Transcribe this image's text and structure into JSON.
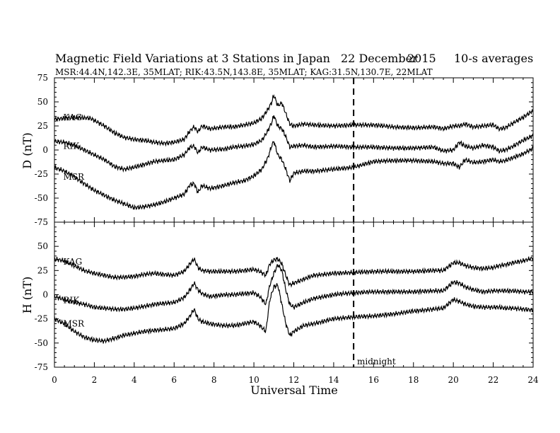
{
  "chart_data": {
    "type": "line",
    "title_left": "Magnetic Field Variations at 3 Stations in Japan",
    "title_date": "22 December",
    "title_year": "2015",
    "title_avg": "10-s averages",
    "subtitle": "MSR:44.4N,142.3E, 35MLAT;   RIK:43.5N,143.8E, 35MLAT;   KAG:31.5N,130.7E, 22MLAT",
    "xlabel": "Universal Time",
    "xlim": [
      0,
      24
    ],
    "xticks": [
      "0",
      "2",
      "4",
      "6",
      "8",
      "10",
      "12",
      "14",
      "16",
      "18",
      "20",
      "22",
      "24"
    ],
    "annotation": {
      "x": 15,
      "label": "midnight"
    },
    "panels": [
      {
        "ylabel": "D (nT)",
        "ylim": [
          -75,
          75
        ],
        "yticks": [
          "75",
          "50",
          "25",
          "0",
          "-25",
          "-50",
          "-75"
        ],
        "series": [
          {
            "name": "KAG",
            "label_at": [
              0.3,
              34
            ],
            "x": [
              0,
              1,
              1.8,
              2.5,
              3,
              3.5,
              4,
              4.5,
              5,
              5.5,
              6,
              6.5,
              6.8,
              7,
              7.2,
              7.4,
              7.8,
              8.5,
              9,
              9.5,
              10,
              10.4,
              10.7,
              10.9,
              11.0,
              11.2,
              11.4,
              11.6,
              11.8,
              12,
              12.5,
              13,
              14,
              15,
              16,
              17,
              18,
              19,
              19.5,
              20,
              20.3,
              20.6,
              21,
              21.5,
              22,
              22.3,
              22.6,
              23,
              23.5,
              24
            ],
            "values": [
              32,
              34,
              33,
              25,
              18,
              13,
              11,
              10,
              8,
              7,
              8,
              11,
              20,
              24,
              19,
              25,
              22,
              24,
              24,
              26,
              28,
              33,
              42,
              50,
              57,
              46,
              49,
              38,
              27,
              25,
              27,
              26,
              25,
              26,
              26,
              24,
              23,
              24,
              22,
              25,
              25,
              27,
              24,
              25,
              26,
              22,
              23,
              28,
              34,
              41
            ]
          },
          {
            "name": "RIK",
            "label_at": [
              0.3,
              4
            ],
            "x": [
              0,
              0.5,
              1,
              2,
              2.5,
              3,
              3.5,
              4,
              4.5,
              5,
              6,
              6.5,
              6.8,
              7,
              7.2,
              7.4,
              7.8,
              8.5,
              9,
              9.5,
              10,
              10.4,
              10.7,
              10.9,
              11.0,
              11.2,
              11.4,
              11.6,
              11.8,
              12,
              12.5,
              13,
              14,
              15,
              16,
              17,
              18,
              19,
              19.5,
              20,
              20.3,
              20.6,
              21,
              21.5,
              22,
              22.3,
              22.6,
              23,
              23.5,
              24
            ],
            "values": [
              9,
              8,
              5,
              -5,
              -10,
              -17,
              -20,
              -18,
              -15,
              -12,
              -10,
              -5,
              3,
              4,
              -3,
              3,
              0,
              1,
              3,
              4,
              6,
              10,
              20,
              29,
              36,
              25,
              22,
              14,
              3,
              4,
              5,
              3,
              4,
              3,
              3,
              2,
              2,
              3,
              -1,
              0,
              8,
              4,
              2,
              5,
              3,
              -1,
              0,
              4,
              10,
              15
            ]
          },
          {
            "name": "MSR",
            "label_at": [
              0.3,
              -28
            ],
            "x": [
              0,
              0.5,
              1,
              1.5,
              2,
              2.5,
              3,
              3.5,
              4,
              4.5,
              5,
              5.5,
              6,
              6.5,
              6.8,
              7,
              7.2,
              7.4,
              7.8,
              8.5,
              9,
              9.5,
              10,
              10.4,
              10.7,
              10.9,
              11.0,
              11.2,
              11.4,
              11.6,
              11.8,
              12,
              12.5,
              13,
              14,
              15,
              16,
              17,
              18,
              19,
              19.5,
              20,
              20.3,
              20.6,
              21,
              21.5,
              22,
              22.3,
              22.6,
              23,
              23.5,
              24
            ],
            "values": [
              -18,
              -22,
              -28,
              -35,
              -42,
              -47,
              -52,
              -56,
              -60,
              -59,
              -57,
              -54,
              -50,
              -46,
              -36,
              -35,
              -44,
              -37,
              -40,
              -37,
              -34,
              -32,
              -27,
              -20,
              -8,
              5,
              9,
              -5,
              -10,
              -20,
              -32,
              -24,
              -22,
              -22,
              -20,
              -18,
              -12,
              -11,
              -11,
              -12,
              -14,
              -14,
              -18,
              -10,
              -13,
              -12,
              -10,
              -12,
              -11,
              -8,
              -4,
              2
            ]
          }
        ]
      },
      {
        "ylabel": "H (nT)",
        "ylim": [
          -75,
          75
        ],
        "yticks": [
          "50",
          "25",
          "0",
          "-25",
          "-50",
          "-75"
        ],
        "series": [
          {
            "name": "KAG",
            "label_at": [
              0.3,
              34
            ],
            "x": [
              0,
              0.5,
              1,
              1.5,
              2,
              2.5,
              3,
              3.5,
              4,
              4.5,
              5,
              6,
              6.5,
              6.8,
              7,
              7.2,
              7.4,
              7.8,
              8.5,
              9,
              10,
              10.3,
              10.6,
              10.8,
              11.0,
              11.2,
              11.4,
              11.6,
              11.8,
              12,
              12.5,
              13,
              14,
              15,
              16,
              17,
              18,
              19,
              19.5,
              20,
              20.3,
              20.6,
              21,
              21.5,
              22,
              22.3,
              22.6,
              23,
              23.5,
              24
            ],
            "values": [
              37,
              35,
              30,
              25,
              22,
              20,
              18,
              18,
              19,
              21,
              22,
              20,
              24,
              32,
              37,
              28,
              25,
              24,
              24,
              24,
              26,
              24,
              20,
              32,
              36,
              37,
              32,
              20,
              10,
              12,
              16,
              20,
              22,
              23,
              24,
              24,
              24,
              25,
              25,
              33,
              33,
              30,
              28,
              27,
              28,
              30,
              31,
              33,
              35,
              38
            ]
          },
          {
            "name": "RIK",
            "label_at": [
              0.3,
              -6
            ],
            "x": [
              0,
              0.5,
              1,
              1.5,
              2,
              2.5,
              3,
              3.5,
              4,
              4.5,
              5,
              6,
              6.5,
              6.8,
              7,
              7.2,
              7.4,
              7.8,
              8.5,
              9,
              10,
              10.3,
              10.6,
              10.8,
              11.0,
              11.2,
              11.4,
              11.6,
              11.8,
              12,
              12.5,
              13,
              14,
              15,
              16,
              17,
              18,
              19,
              19.5,
              20,
              20.3,
              20.6,
              21,
              21.5,
              22,
              22.3,
              22.6,
              23,
              23.5,
              24
            ],
            "values": [
              -2,
              -5,
              -8,
              -10,
              -13,
              -14,
              -15,
              -15,
              -14,
              -12,
              -10,
              -8,
              -3,
              5,
              12,
              5,
              1,
              -2,
              0,
              0,
              2,
              -2,
              -10,
              10,
              22,
              31,
              25,
              5,
              -10,
              -13,
              -8,
              -4,
              0,
              2,
              3,
              3,
              3,
              4,
              4,
              13,
              12,
              8,
              5,
              3,
              4,
              4,
              4,
              4,
              3,
              3
            ]
          },
          {
            "name": "MSR",
            "label_at": [
              0.3,
              -30
            ],
            "x": [
              0,
              0.5,
              1,
              1.5,
              2,
              2.5,
              3,
              3.5,
              4,
              4.5,
              5,
              6,
              6.5,
              6.8,
              7,
              7.2,
              7.4,
              7.8,
              8.5,
              9,
              10,
              10.3,
              10.6,
              10.8,
              11.0,
              11.2,
              11.4,
              11.6,
              11.8,
              12,
              12.5,
              13,
              14,
              15,
              16,
              17,
              18,
              19,
              19.5,
              20,
              20.3,
              20.6,
              21,
              21.5,
              22,
              22.3,
              22.6,
              23,
              23.5,
              24
            ],
            "values": [
              -25,
              -30,
              -38,
              -44,
              -47,
              -48,
              -45,
              -42,
              -40,
              -38,
              -37,
              -35,
              -30,
              -22,
              -15,
              -25,
              -28,
              -30,
              -32,
              -32,
              -28,
              -32,
              -38,
              -5,
              8,
              10,
              -10,
              -30,
              -42,
              -38,
              -32,
              -30,
              -25,
              -23,
              -22,
              -20,
              -17,
              -15,
              -14,
              -5,
              -7,
              -10,
              -12,
              -13,
              -13,
              -13,
              -14,
              -14,
              -15,
              -16
            ]
          }
        ]
      }
    ]
  }
}
